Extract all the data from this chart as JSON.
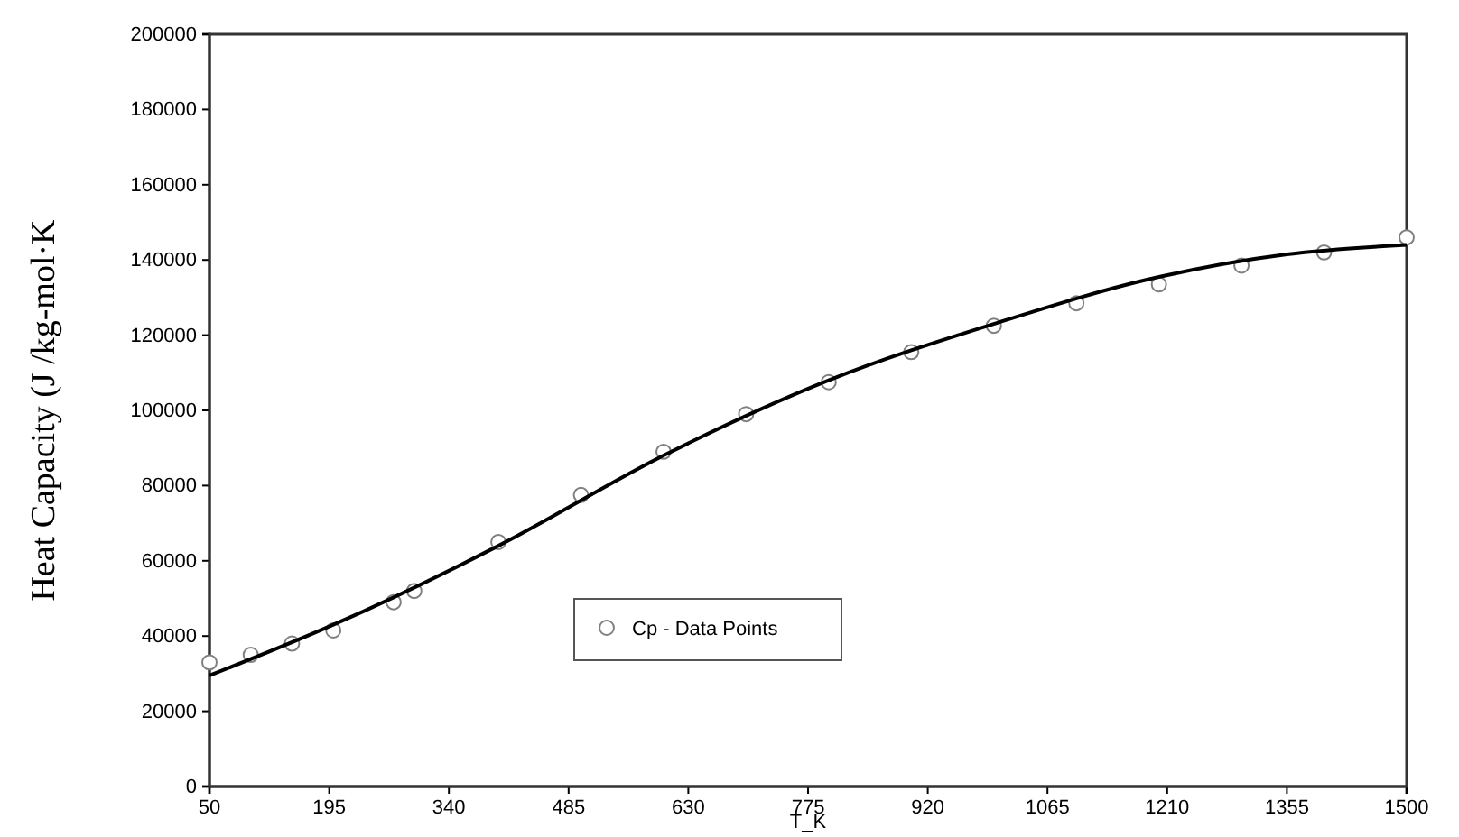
{
  "chart_data": {
    "type": "scatter",
    "xlabel": "T_K",
    "ylabel": "Heat Capacity (J /kg-mol·K",
    "xlim": [
      50,
      1500
    ],
    "xticks": [
      50,
      195,
      340,
      485,
      630,
      775,
      920,
      1065,
      1210,
      1355,
      1500
    ],
    "ylim": [
      0,
      200000
    ],
    "yticks": [
      0,
      20000,
      40000,
      60000,
      80000,
      100000,
      120000,
      140000,
      160000,
      180000,
      200000
    ],
    "grid": false,
    "legend": "bottom",
    "series": [
      {
        "name": "Cp - Data Points",
        "marker": "circle",
        "color": "#808080",
        "x": [
          50,
          100,
          150,
          200,
          273,
          298,
          400,
          500,
          600,
          700,
          800,
          900,
          1000,
          1100,
          1200,
          1300,
          1400,
          1500
        ],
        "values": [
          33000,
          35000,
          38000,
          41500,
          49000,
          52000,
          65000,
          77500,
          89000,
          99000,
          107500,
          115500,
          122500,
          128500,
          133500,
          138500,
          142000,
          146000
        ]
      },
      {
        "type": "line",
        "marker": "none",
        "line_style": "solid",
        "color": "#000000",
        "x": [
          50,
          200,
          400,
          600,
          800,
          1000,
          1200,
          1355,
          1500
        ],
        "values": [
          29500,
          43000,
          64000,
          88000,
          108000,
          123000,
          135500,
          141500,
          144000
        ]
      }
    ]
  }
}
